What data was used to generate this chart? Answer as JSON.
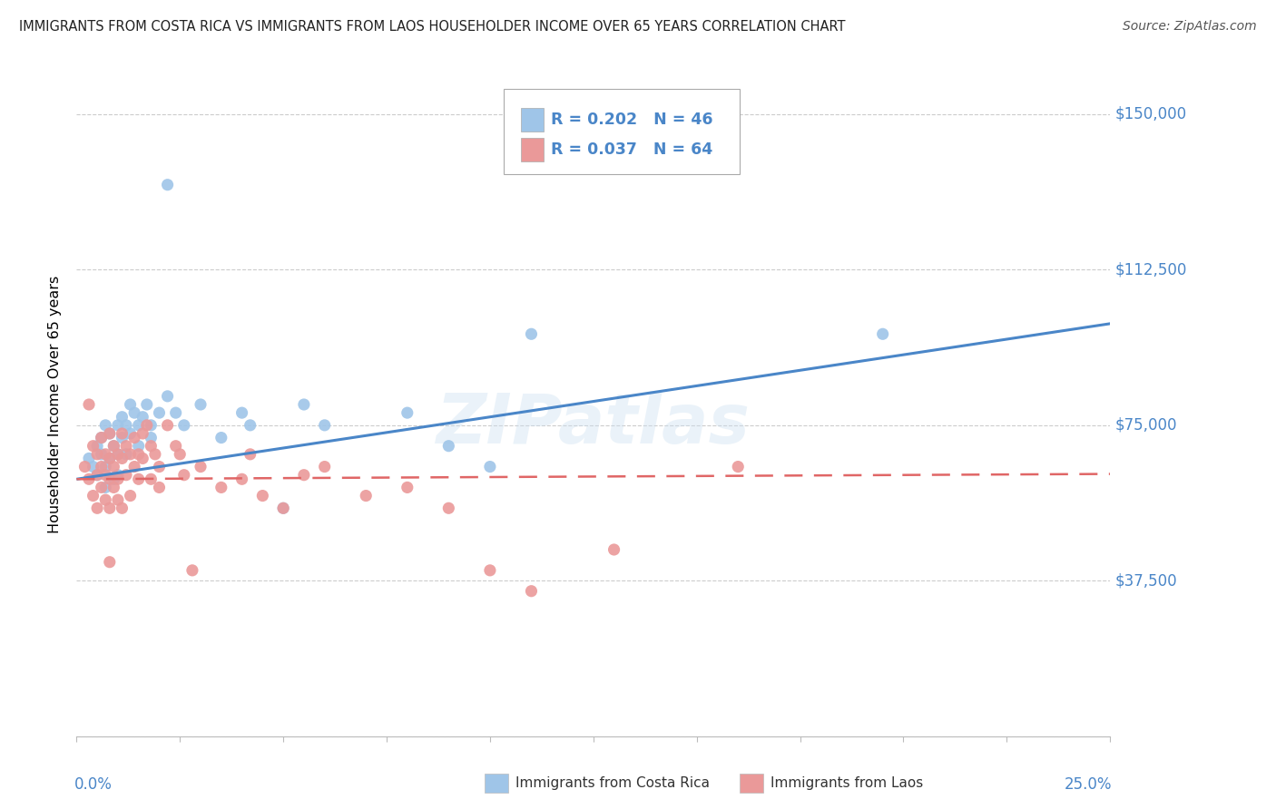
{
  "title": "IMMIGRANTS FROM COSTA RICA VS IMMIGRANTS FROM LAOS HOUSEHOLDER INCOME OVER 65 YEARS CORRELATION CHART",
  "source": "Source: ZipAtlas.com",
  "ylabel": "Householder Income Over 65 years",
  "yticks": [
    0,
    37500,
    75000,
    112500,
    150000
  ],
  "ytick_labels": [
    "",
    "$37,500",
    "$75,000",
    "$112,500",
    "$150,000"
  ],
  "xlim": [
    0.0,
    0.25
  ],
  "ylim": [
    0,
    160000
  ],
  "watermark": "ZIPatlas",
  "costa_rica_R": 0.202,
  "costa_rica_N": 46,
  "laos_R": 0.037,
  "laos_N": 64,
  "costa_rica_color": "#9fc5e8",
  "laos_color": "#ea9999",
  "costa_rica_line_color": "#4a86c8",
  "laos_line_color": "#e06666",
  "cr_x": [
    0.003,
    0.004,
    0.005,
    0.005,
    0.006,
    0.006,
    0.007,
    0.007,
    0.007,
    0.008,
    0.008,
    0.009,
    0.009,
    0.01,
    0.01,
    0.01,
    0.011,
    0.011,
    0.012,
    0.012,
    0.013,
    0.013,
    0.014,
    0.015,
    0.015,
    0.016,
    0.017,
    0.018,
    0.018,
    0.02,
    0.022,
    0.024,
    0.026,
    0.03,
    0.035,
    0.04,
    0.042,
    0.05,
    0.055,
    0.06,
    0.08,
    0.09,
    0.1,
    0.11,
    0.022,
    0.195
  ],
  "cr_y": [
    67000,
    65000,
    70000,
    63000,
    68000,
    72000,
    65000,
    75000,
    60000,
    73000,
    67000,
    70000,
    62000,
    75000,
    68000,
    63000,
    77000,
    72000,
    75000,
    68000,
    80000,
    73000,
    78000,
    75000,
    70000,
    77000,
    80000,
    75000,
    72000,
    78000,
    82000,
    78000,
    75000,
    80000,
    72000,
    78000,
    75000,
    55000,
    80000,
    75000,
    78000,
    70000,
    65000,
    97000,
    133000,
    97000
  ],
  "laos_x": [
    0.002,
    0.003,
    0.004,
    0.004,
    0.005,
    0.005,
    0.005,
    0.006,
    0.006,
    0.006,
    0.007,
    0.007,
    0.007,
    0.008,
    0.008,
    0.008,
    0.008,
    0.009,
    0.009,
    0.009,
    0.01,
    0.01,
    0.01,
    0.011,
    0.011,
    0.011,
    0.012,
    0.012,
    0.013,
    0.013,
    0.014,
    0.014,
    0.015,
    0.015,
    0.016,
    0.016,
    0.017,
    0.018,
    0.018,
    0.019,
    0.02,
    0.02,
    0.022,
    0.024,
    0.025,
    0.026,
    0.028,
    0.03,
    0.035,
    0.04,
    0.042,
    0.045,
    0.05,
    0.055,
    0.06,
    0.07,
    0.08,
    0.09,
    0.1,
    0.11,
    0.13,
    0.16,
    0.003,
    0.008
  ],
  "laos_y": [
    65000,
    62000,
    70000,
    58000,
    68000,
    63000,
    55000,
    72000,
    65000,
    60000,
    68000,
    63000,
    57000,
    73000,
    67000,
    62000,
    55000,
    70000,
    65000,
    60000,
    68000,
    62000,
    57000,
    73000,
    67000,
    55000,
    70000,
    63000,
    68000,
    58000,
    72000,
    65000,
    68000,
    62000,
    73000,
    67000,
    75000,
    70000,
    62000,
    68000,
    65000,
    60000,
    75000,
    70000,
    68000,
    63000,
    40000,
    65000,
    60000,
    62000,
    68000,
    58000,
    55000,
    63000,
    65000,
    58000,
    60000,
    55000,
    40000,
    35000,
    45000,
    65000,
    80000,
    42000
  ]
}
